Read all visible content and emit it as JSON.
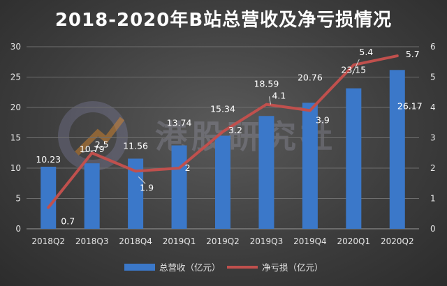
{
  "chart_data": {
    "type": "bar+line",
    "title": "2018-2020年B站总营收及净亏损情况",
    "categories": [
      "2018Q2",
      "2018Q3",
      "2018Q4",
      "2019Q1",
      "2019Q2",
      "2019Q3",
      "2019Q4",
      "2020Q1",
      "2020Q2"
    ],
    "series": [
      {
        "name": "总营收（亿元）",
        "type": "bar",
        "axis": "left",
        "values": [
          10.23,
          10.79,
          11.56,
          13.74,
          15.34,
          18.59,
          20.76,
          23.15,
          26.17
        ],
        "labels": [
          "10.23",
          "10.79",
          "11.56",
          "13.74",
          "15.34",
          "18.59",
          "20.76",
          "23.15",
          "26.17"
        ],
        "color": "#3b78c9"
      },
      {
        "name": "净亏损（亿元）",
        "type": "line",
        "axis": "right",
        "values": [
          0.7,
          2.5,
          1.9,
          2.0,
          3.2,
          4.1,
          3.9,
          5.4,
          5.7
        ],
        "labels": [
          "0.7",
          "2.5",
          "1.9",
          "2",
          "3.2",
          "4.1",
          "3.9",
          "5.4",
          "5.7"
        ],
        "color": "#c0504d"
      }
    ],
    "y_left": {
      "min": 0,
      "max": 30,
      "ticks": [
        "0",
        "5",
        "10",
        "15",
        "20",
        "25",
        "30"
      ]
    },
    "y_right": {
      "min": 0,
      "max": 6,
      "ticks": [
        "0",
        "1",
        "2",
        "3",
        "4",
        "5",
        "6"
      ]
    },
    "grid": true,
    "legend_position": "bottom"
  },
  "watermark": {
    "text": "港股研究社"
  }
}
